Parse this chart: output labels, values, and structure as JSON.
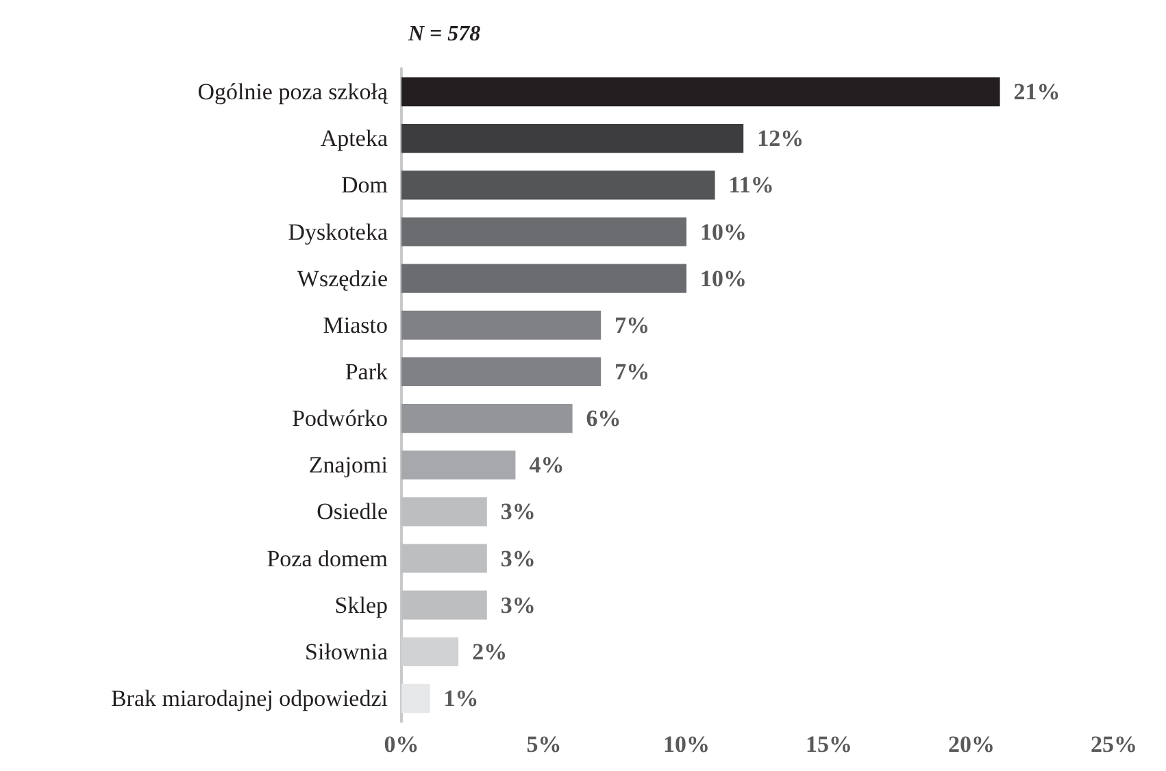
{
  "chart_data": {
    "type": "bar",
    "orientation": "horizontal",
    "title": "N = 578",
    "categories": [
      "Ogólnie poza szkołą",
      "Apteka",
      "Dom",
      "Dyskoteka",
      "Wszędzie",
      "Miasto",
      "Park",
      "Podwórko",
      "Znajomi",
      "Osiedle",
      "Poza domem",
      "Sklep",
      "Siłownia",
      "Brak miarodajnej odpowiedzi"
    ],
    "values": [
      21,
      12,
      11,
      10,
      10,
      7,
      7,
      6,
      4,
      3,
      3,
      3,
      2,
      1
    ],
    "value_labels": [
      "21%",
      "12%",
      "11%",
      "10%",
      "10%",
      "7%",
      "7%",
      "6%",
      "4%",
      "3%",
      "3%",
      "3%",
      "2%",
      "1%"
    ],
    "colors": [
      "#231f20",
      "#3d3d3f",
      "#545557",
      "#6b6c70",
      "#6b6c70",
      "#808184",
      "#808184",
      "#939598",
      "#a6a8ab",
      "#bcbec0",
      "#bcbec0",
      "#bcbec0",
      "#d1d2d4",
      "#e6e7e8"
    ],
    "xlim": [
      0,
      25
    ],
    "xticks": [
      {
        "value": 0,
        "label": "0%"
      },
      {
        "value": 5,
        "label": "5%"
      },
      {
        "value": 10,
        "label": "10%"
      },
      {
        "value": 15,
        "label": "15%"
      },
      {
        "value": 20,
        "label": "20%"
      },
      {
        "value": 25,
        "label": "25%"
      }
    ],
    "grid": false
  }
}
